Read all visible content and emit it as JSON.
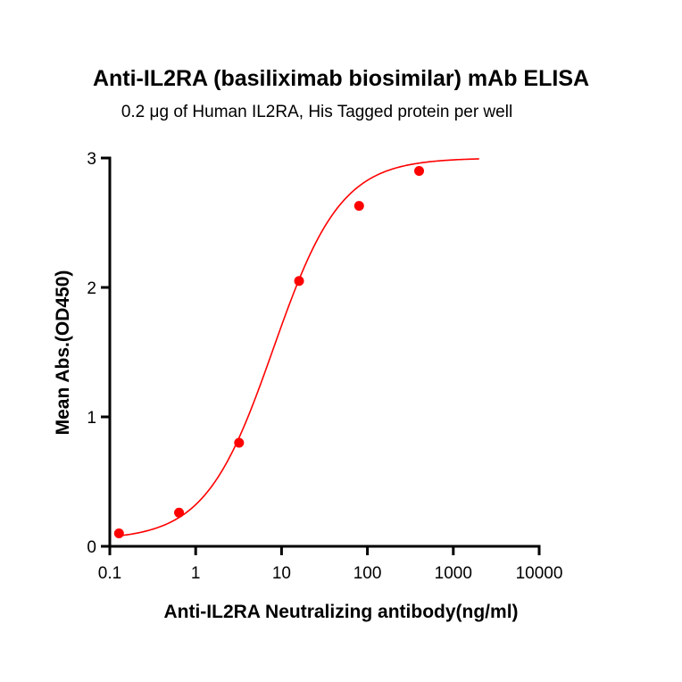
{
  "chart_data": {
    "type": "scatter",
    "title": "Anti-IL2RA (basiliximab biosimilar) mAb ELISA",
    "subtitle": "0.2 μg of Human IL2RA, His Tagged protein per well",
    "xlabel": "Anti-IL2RA Neutralizing antibody(ng/ml)",
    "ylabel": "Mean Abs.(OD450)",
    "x_scale": "log",
    "xlim": [
      0.1,
      10000
    ],
    "ylim": [
      0,
      3
    ],
    "x_ticks": [
      "0.1",
      "1",
      "10",
      "100",
      "1000",
      "10000"
    ],
    "y_ticks": [
      "0",
      "1",
      "2",
      "3"
    ],
    "grid": false,
    "color": "#ff0000",
    "points": [
      {
        "x": 0.128,
        "y": 0.1
      },
      {
        "x": 0.64,
        "y": 0.26
      },
      {
        "x": 3.2,
        "y": 0.8
      },
      {
        "x": 16,
        "y": 2.05
      },
      {
        "x": 80,
        "y": 2.63
      },
      {
        "x": 400,
        "y": 2.9
      }
    ],
    "fit_curve": {
      "model": "4PL",
      "bottom": 0.05,
      "top": 3.0,
      "ec50": 8,
      "hill": 1.1,
      "x_range": [
        0.128,
        2000
      ]
    }
  }
}
